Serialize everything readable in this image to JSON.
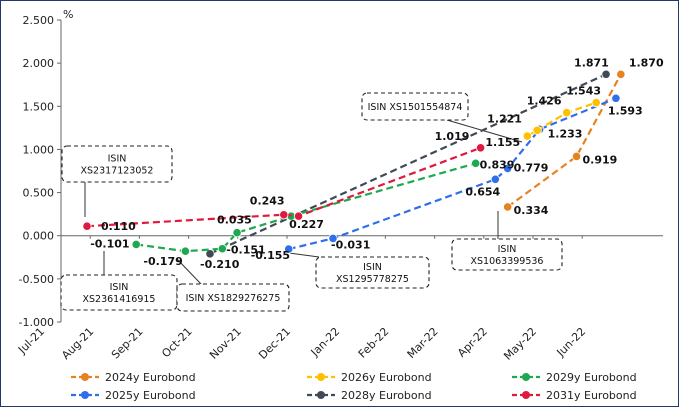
{
  "chart_data": {
    "type": "line",
    "y_unit": "%",
    "ylim": [
      -1.0,
      2.5
    ],
    "y_ticks": [
      "2.500",
      "2.000",
      "1.500",
      "1.000",
      "0.500",
      "0.000",
      "-0.500",
      "-1.000"
    ],
    "x_ticks": [
      "Jul-21",
      "Aug-21",
      "Sep-21",
      "Oct-21",
      "Nov-21",
      "Dec-21",
      "Jan-22",
      "Feb-22",
      "Mar-22",
      "Apr-22",
      "May-22",
      "Jun-22"
    ],
    "legend_position": "bottom",
    "grid": false,
    "series": [
      {
        "name": "2024y Eurobond",
        "color": "#E8821E",
        "points": [
          [
            8.55,
            0.334
          ],
          [
            9.95,
            0.919
          ],
          [
            10.85,
            1.87
          ]
        ],
        "labels": [
          "0.334",
          "0.919",
          "1.870"
        ]
      },
      {
        "name": "2025y Eurobond",
        "color": "#2F6FEB",
        "points": [
          [
            4.1,
            -0.155
          ],
          [
            5.0,
            -0.031
          ],
          [
            8.3,
            0.654
          ],
          [
            8.55,
            0.779
          ],
          [
            9.2,
            1.233
          ],
          [
            10.75,
            1.593
          ]
        ],
        "labels": [
          "-0.155",
          "-0.031",
          "0.654",
          "0.779",
          "1.233",
          "1.593"
        ]
      },
      {
        "name": "2026y Eurobond",
        "color": "#FFC000",
        "points": [
          [
            8.95,
            1.155
          ],
          [
            9.15,
            1.221
          ],
          [
            9.75,
            1.426
          ],
          [
            10.35,
            1.543
          ]
        ],
        "labels": [
          "1.155",
          "1.221",
          "1.426",
          "1.543"
        ]
      },
      {
        "name": "2028y Eurobond",
        "color": "#404A57",
        "points": [
          [
            2.5,
            -0.21
          ],
          [
            10.55,
            1.871
          ]
        ],
        "labels": [
          "-0.210",
          "1.871"
        ]
      },
      {
        "name": "2029y Eurobond",
        "color": "#1EA84F",
        "points": [
          [
            1.0,
            -0.101
          ],
          [
            2.0,
            -0.179
          ],
          [
            2.75,
            -0.151
          ],
          [
            3.05,
            0.035
          ],
          [
            4.15,
            0.227
          ],
          [
            7.9,
            0.839
          ]
        ],
        "labels": [
          "-0.101",
          "-0.179",
          "-0.151",
          "0.035",
          "0.227",
          "0.839"
        ]
      },
      {
        "name": "2031y Eurobond",
        "color": "#E0193E",
        "points": [
          [
            0.0,
            0.11
          ],
          [
            4.0,
            0.243
          ],
          [
            4.3,
            0.227
          ],
          [
            8.0,
            1.019
          ]
        ],
        "labels": [
          "0.110",
          "0.243",
          "",
          "1.019"
        ]
      }
    ],
    "annotations": [
      {
        "lines": [
          "ISIN",
          "XS2317123052"
        ]
      },
      {
        "lines": [
          "ISIN",
          "XS2361416915"
        ]
      },
      {
        "lines": [
          "ISIN XS1829276275"
        ]
      },
      {
        "lines": [
          "ISIN",
          "XS1295778275"
        ]
      },
      {
        "lines": [
          "ISIN XS1501554874"
        ]
      },
      {
        "lines": [
          "ISIN",
          "XS1063399536"
        ]
      }
    ]
  }
}
